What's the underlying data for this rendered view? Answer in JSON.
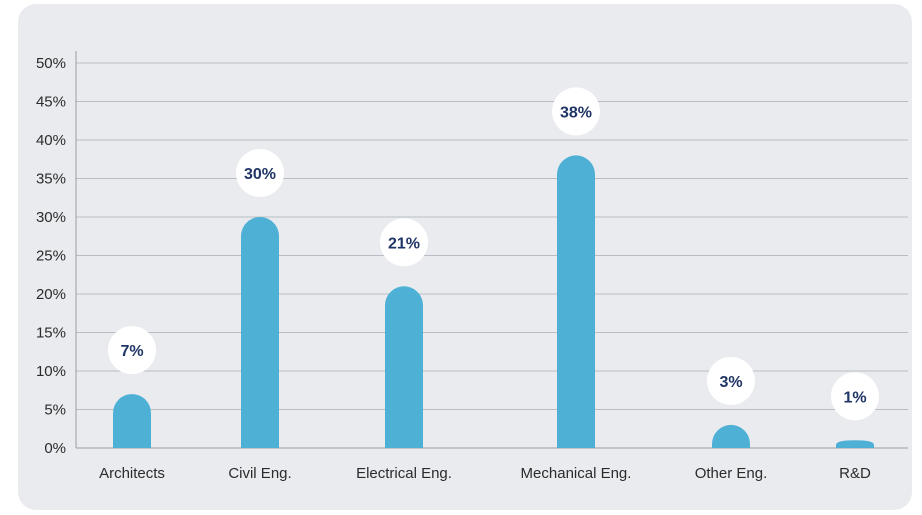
{
  "chart_data": {
    "type": "bar",
    "categories": [
      "Architects",
      "Civil Eng.",
      "Electrical Eng.",
      "Mechanical Eng.",
      "Other Eng.",
      "R&D"
    ],
    "values": [
      7,
      30,
      21,
      38,
      3,
      1
    ],
    "data_labels": [
      "7%",
      "30%",
      "21%",
      "38%",
      "3%",
      "1%"
    ],
    "ylim": [
      0,
      50
    ],
    "yticks": [
      0,
      5,
      10,
      15,
      20,
      25,
      30,
      35,
      40,
      45,
      50
    ],
    "ytick_labels": [
      "0%",
      "5%",
      "10%",
      "15%",
      "20%",
      "25%",
      "30%",
      "35%",
      "40%",
      "45%",
      "50%"
    ],
    "grid": true,
    "legend": "none",
    "bar_color": "#4fb0d6",
    "label_color": "#1f3566",
    "label_bubble_color": "#ffffff",
    "background_color": "#e9ebef"
  }
}
